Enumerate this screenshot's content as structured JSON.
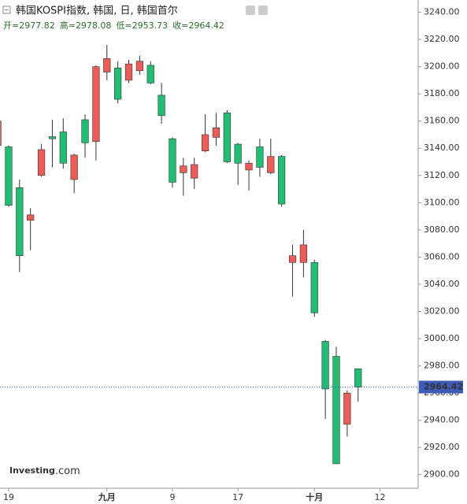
{
  "chart_data": {
    "type": "candlestick",
    "title": "韩国KOSPI指数, 韩国, 日, 韩国首尔",
    "ohlc_labels": [
      "开=",
      "高=",
      "低=",
      "收="
    ],
    "watermark": {
      "brand": "Investing",
      "suffix": ".com"
    },
    "up_color": "#ef5b55",
    "down_color": "#1fbf72",
    "price_line_color": "#3d5bb8",
    "x": [
      -1,
      0,
      1,
      2,
      3,
      4,
      5,
      6,
      7,
      8,
      9,
      10,
      11,
      12,
      13,
      14,
      15,
      16,
      17,
      18,
      19,
      20,
      21,
      22,
      23,
      24,
      25,
      26,
      27,
      28,
      29,
      30,
      31,
      32
    ],
    "open": [
      3142,
      3141,
      3111,
      3087,
      3120,
      3148.5,
      3152,
      3117,
      3161,
      3145,
      3196,
      3199,
      3190,
      3197,
      3201,
      3179,
      3147,
      3122,
      3118,
      3138,
      3148,
      3166,
      3143,
      3124,
      3141,
      3122,
      3134,
      3056,
      3056,
      3056,
      2998,
      2987,
      2937,
      2977.82
    ],
    "high": [
      3164,
      3142,
      3117,
      3096,
      3143,
      3161,
      3162,
      3136,
      3165,
      3201,
      3216,
      3204,
      3205,
      3208,
      3204,
      3188,
      3148,
      3133,
      3133,
      3165,
      3166,
      3168,
      3144,
      3131,
      3147,
      3147,
      3135,
      3069,
      3080,
      3058,
      2999,
      2994,
      2962,
      2978.08
    ],
    "low": [
      3140,
      3097,
      3049,
      3065,
      3119,
      3126,
      3125,
      3107,
      3133,
      3131,
      3190,
      3173,
      3188,
      3194,
      3187,
      3158,
      3111,
      3105,
      3110,
      3137,
      3142,
      3129,
      3113,
      3109,
      3119,
      3121,
      3097,
      3031,
      3045,
      3016,
      2941,
      2908,
      2928,
      2953.73
    ],
    "close": [
      3160,
      3098,
      3061,
      3091,
      3139,
      3147,
      3129,
      3135,
      3144,
      3200,
      3206,
      3176,
      3202,
      3204,
      3188,
      3164,
      3115,
      3127,
      3128,
      3150,
      3155,
      3130,
      3129,
      3129,
      3126,
      3134,
      3099,
      3061,
      3069,
      3019,
      2963,
      2908,
      2960,
      2964.42
    ],
    "xlim": [
      -0.79,
      37.5
    ],
    "xticks": [
      {
        "value": 0,
        "label": "19"
      },
      {
        "value": 9,
        "label": "九月"
      },
      {
        "value": 15,
        "label": "9"
      },
      {
        "value": 21,
        "label": "17"
      },
      {
        "value": 28,
        "label": "十月"
      },
      {
        "value": 34,
        "label": "12"
      }
    ],
    "ylim": [
      2890,
      3249
    ],
    "yticks": [
      {
        "value": 2900,
        "label": "2900.00"
      },
      {
        "value": 2920,
        "label": "2920.00"
      },
      {
        "value": 2940,
        "label": "2940.00"
      },
      {
        "value": 2960,
        "label": "2960.00"
      },
      {
        "value": 2980,
        "label": "2980.00"
      },
      {
        "value": 3000,
        "label": "3000.00"
      },
      {
        "value": 3020,
        "label": "3020.00"
      },
      {
        "value": 3040,
        "label": "3040.00"
      },
      {
        "value": 3060,
        "label": "3060.00"
      },
      {
        "value": 3080,
        "label": "3080.00"
      },
      {
        "value": 3100,
        "label": "3100.00"
      },
      {
        "value": 3120,
        "label": "3120.00"
      },
      {
        "value": 3140,
        "label": "3140.00"
      },
      {
        "value": 3160,
        "label": "3160.00"
      },
      {
        "value": 3180,
        "label": "3180.00"
      },
      {
        "value": 3200,
        "label": "3200.00"
      },
      {
        "value": 3220,
        "label": "3220.00"
      },
      {
        "value": 3240,
        "label": "3240.00"
      }
    ]
  }
}
